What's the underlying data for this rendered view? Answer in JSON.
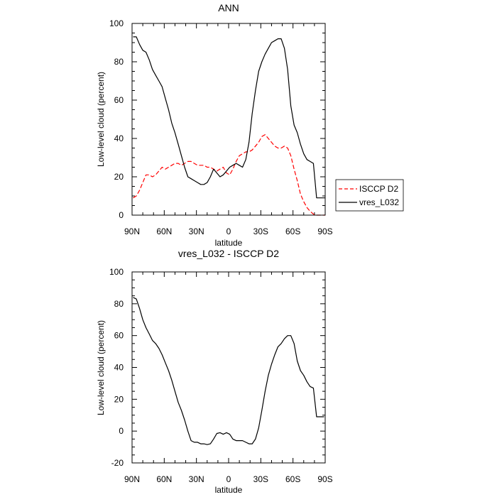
{
  "chart_data": [
    {
      "type": "line",
      "title": "ANN",
      "xlabel": "latitude",
      "ylabel": "Low-level cloud (percent)",
      "xlim": [
        90,
        -90
      ],
      "ylim": [
        0,
        100
      ],
      "x_ticks": [
        {
          "value": 90,
          "label": "90N"
        },
        {
          "value": 60,
          "label": "60N"
        },
        {
          "value": 30,
          "label": "30N"
        },
        {
          "value": 0,
          "label": "0"
        },
        {
          "value": -30,
          "label": "30S"
        },
        {
          "value": -60,
          "label": "60S"
        },
        {
          "value": -90,
          "label": "90S"
        }
      ],
      "y_ticks": [
        0,
        20,
        40,
        60,
        80,
        100
      ],
      "legend": {
        "placement": "right",
        "entries": [
          "ISCCP D2",
          "vres_L032"
        ]
      },
      "series": [
        {
          "name": "ISCCP D2",
          "color": "#ff0000",
          "dash": "dashed",
          "x": [
            89,
            86,
            83,
            80,
            77,
            74,
            71,
            68,
            65,
            62,
            59,
            56,
            53,
            50,
            47,
            44,
            41,
            38,
            35,
            32,
            29,
            26,
            23,
            20,
            17,
            14,
            11,
            8,
            5,
            2,
            -1,
            -4,
            -7,
            -10,
            -13,
            -16,
            -19,
            -22,
            -25,
            -28,
            -31,
            -34,
            -37,
            -40,
            -43,
            -46,
            -49,
            -52,
            -55,
            -58,
            -61,
            -64,
            -67,
            -70,
            -73,
            -76,
            -79,
            -82,
            -85,
            -88,
            -90
          ],
          "y": [
            9,
            10,
            13,
            17,
            21,
            21,
            20,
            21,
            23,
            25,
            24,
            25,
            26,
            27,
            27,
            26,
            27,
            28,
            28,
            27,
            26,
            26,
            26,
            25,
            25,
            24,
            23,
            24,
            25,
            22,
            21,
            24,
            28,
            31,
            32,
            33,
            33,
            34,
            36,
            38,
            41,
            42,
            40,
            38,
            36,
            35,
            35,
            36,
            35,
            31,
            24,
            18,
            11,
            7,
            4,
            2,
            0.5,
            0,
            0,
            0,
            0
          ]
        },
        {
          "name": "vres_L032",
          "color": "#000000",
          "dash": "solid",
          "x": [
            89,
            86,
            83,
            80,
            77,
            74,
            71,
            68,
            65,
            62,
            59,
            56,
            53,
            50,
            47,
            44,
            41,
            38,
            35,
            32,
            29,
            26,
            23,
            20,
            17,
            14,
            11,
            8,
            5,
            2,
            -1,
            -4,
            -7,
            -10,
            -13,
            -16,
            -19,
            -22,
            -25,
            -28,
            -31,
            -34,
            -37,
            -40,
            -43,
            -46,
            -49,
            -52,
            -55,
            -58,
            -61,
            -64,
            -67,
            -70,
            -73,
            -76,
            -79,
            -82,
            -85,
            -88,
            -90
          ],
          "y": [
            93,
            93,
            89,
            86,
            85,
            81,
            76,
            73,
            70,
            67,
            61,
            55,
            48,
            43,
            37,
            31,
            25,
            20,
            19,
            18,
            17,
            16,
            16,
            17,
            20,
            24,
            22,
            20,
            21,
            23,
            25,
            26,
            27,
            26,
            25,
            29,
            38,
            53,
            65,
            75,
            80,
            84,
            87,
            90,
            91,
            92,
            92,
            87,
            76,
            57,
            47,
            43,
            37,
            32,
            29,
            28,
            27,
            9,
            9,
            9,
            9
          ]
        }
      ]
    },
    {
      "type": "line",
      "title": "vres_L032 - ISCCP D2",
      "xlabel": "latitude",
      "ylabel": "Low-level cloud (percent)",
      "xlim": [
        90,
        -90
      ],
      "ylim": [
        -20,
        100
      ],
      "x_ticks": [
        {
          "value": 90,
          "label": "90N"
        },
        {
          "value": 60,
          "label": "60N"
        },
        {
          "value": 30,
          "label": "30N"
        },
        {
          "value": 0,
          "label": "0"
        },
        {
          "value": -30,
          "label": "30S"
        },
        {
          "value": -60,
          "label": "60S"
        },
        {
          "value": -90,
          "label": "90S"
        }
      ],
      "y_ticks": [
        -20,
        0,
        20,
        40,
        60,
        80,
        100
      ],
      "series": [
        {
          "name": "vres_L032 - ISCCP D2",
          "color": "#000000",
          "dash": "solid",
          "x": [
            89,
            86,
            83,
            80,
            77,
            74,
            71,
            68,
            65,
            62,
            59,
            56,
            53,
            50,
            47,
            44,
            41,
            38,
            35,
            32,
            29,
            26,
            23,
            20,
            17,
            14,
            11,
            8,
            5,
            2,
            -1,
            -4,
            -7,
            -10,
            -13,
            -16,
            -19,
            -22,
            -25,
            -28,
            -31,
            -34,
            -37,
            -40,
            -43,
            -46,
            -49,
            -52,
            -55,
            -58,
            -61,
            -64,
            -67,
            -70,
            -73,
            -76,
            -79,
            -82,
            -85,
            -88,
            -89
          ],
          "y": [
            84,
            83,
            77,
            70,
            65,
            61,
            57,
            55,
            52,
            48,
            43,
            38,
            32,
            25,
            18,
            13,
            7,
            0,
            -6,
            -7,
            -7,
            -8,
            -8,
            -8.5,
            -8,
            -5,
            -1.5,
            -1,
            -2,
            -1,
            -2,
            -5,
            -6,
            -6,
            -6,
            -7,
            -8,
            -8,
            -5,
            2,
            13,
            25,
            35,
            42,
            48,
            53,
            55,
            58,
            60,
            60,
            55,
            44,
            38,
            35,
            31,
            28,
            27,
            9,
            9,
            9,
            9
          ]
        }
      ]
    }
  ]
}
